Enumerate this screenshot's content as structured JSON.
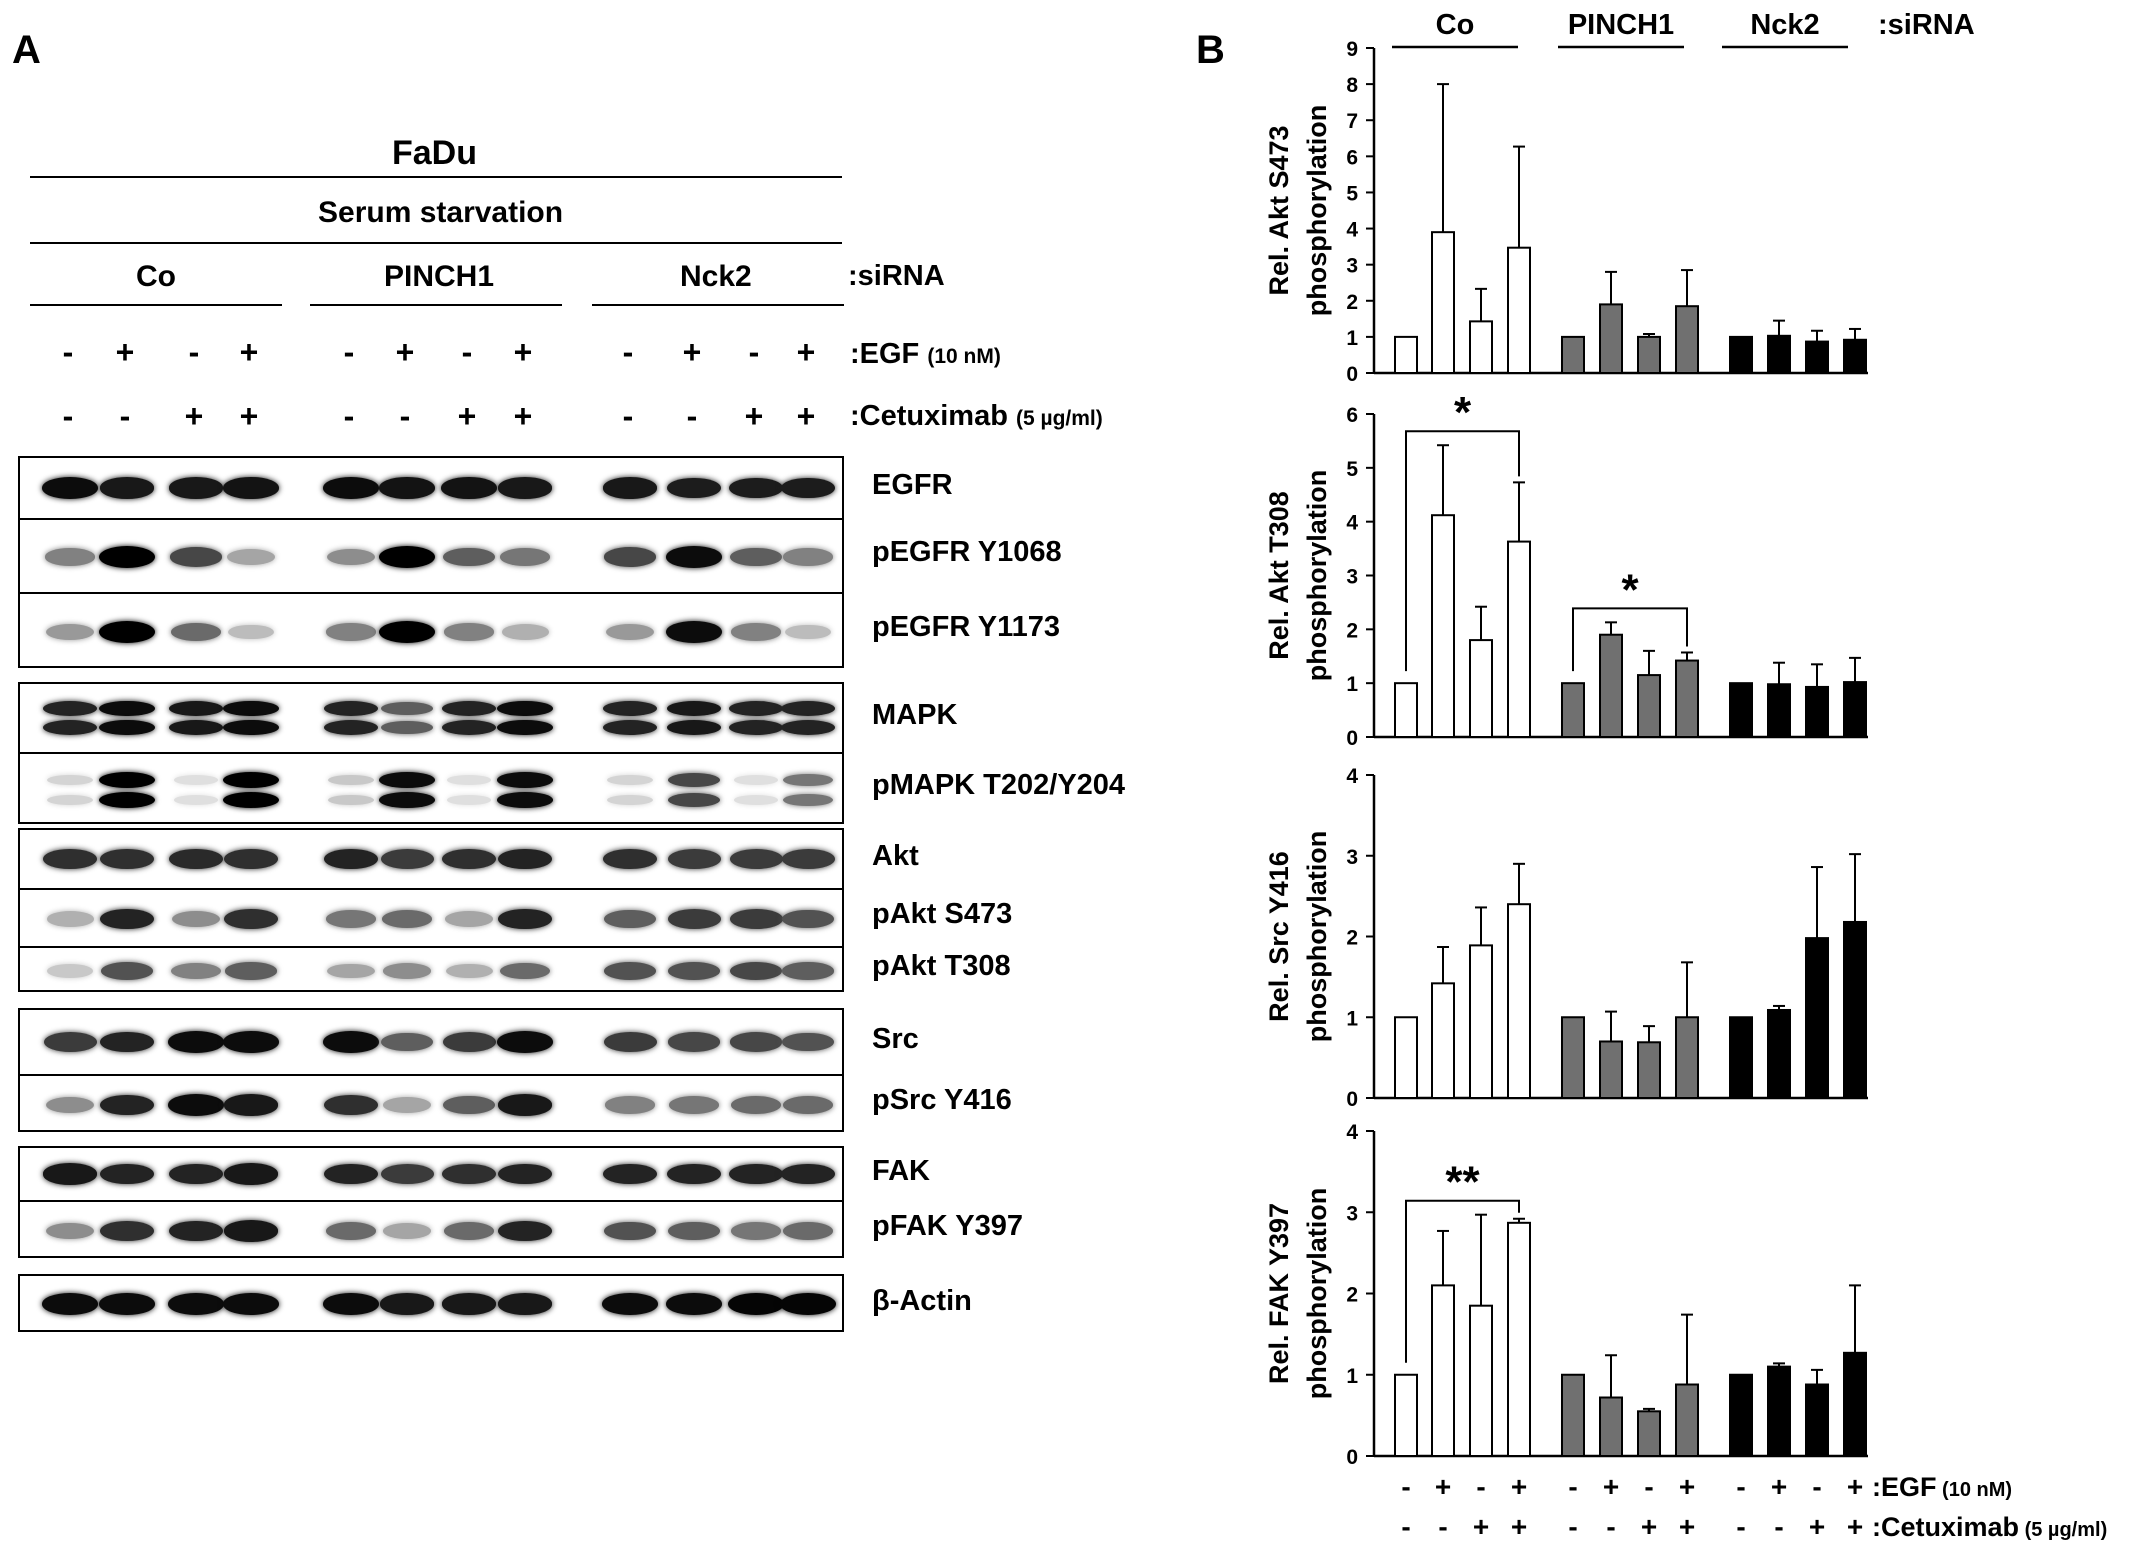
{
  "panel_a": {
    "letter": "A",
    "cell_line": "FaDu",
    "condition": "Serum starvation",
    "sirna_groups": [
      "Co",
      "PINCH1",
      "Nck2"
    ],
    "sirna_suffix": ":siRNA",
    "egf_signs": [
      "-",
      "+",
      "-",
      "+",
      "-",
      "+",
      "-",
      "+",
      "-",
      "+",
      "-",
      "+"
    ],
    "egf_label": ":EGF",
    "egf_dose": "(10 nM)",
    "cetuximab_signs": [
      "-",
      "-",
      "+",
      "+",
      "-",
      "-",
      "+",
      "+",
      "-",
      "-",
      "+",
      "+"
    ],
    "cetuximab_label": ":Cetuximab",
    "cetuximab_dose": "(5 µg/ml)",
    "blot_labels": [
      "EGFR",
      "pEGFR Y1068",
      "pEGFR Y1173",
      "MAPK",
      "pMAPK T202/Y204",
      "Akt",
      "pAkt S473",
      "pAkt T308",
      "Src",
      "pSrc Y416",
      "FAK",
      "pFAK Y397",
      "β-Actin"
    ],
    "band_intensity": {
      "EGFR": [
        0.95,
        0.9,
        0.9,
        0.92,
        0.95,
        0.92,
        0.92,
        0.9,
        0.9,
        0.88,
        0.88,
        0.88
      ],
      "pEGFR Y1068": [
        0.45,
        1.0,
        0.7,
        0.3,
        0.4,
        1.0,
        0.6,
        0.5,
        0.7,
        0.95,
        0.6,
        0.45
      ],
      "pEGFR Y1173": [
        0.35,
        1.0,
        0.55,
        0.2,
        0.45,
        1.0,
        0.45,
        0.25,
        0.35,
        0.95,
        0.45,
        0.2
      ],
      "MAPK": [
        0.85,
        0.95,
        0.9,
        0.95,
        0.85,
        0.6,
        0.85,
        0.95,
        0.85,
        0.9,
        0.85,
        0.85
      ],
      "pMAPK T202/Y204": [
        0.1,
        1.0,
        0.05,
        1.0,
        0.15,
        0.95,
        0.05,
        0.95,
        0.1,
        0.7,
        0.05,
        0.5
      ],
      "Akt": [
        0.8,
        0.8,
        0.82,
        0.8,
        0.85,
        0.75,
        0.8,
        0.85,
        0.8,
        0.75,
        0.75,
        0.75
      ],
      "pAkt S473": [
        0.25,
        0.85,
        0.4,
        0.8,
        0.5,
        0.55,
        0.3,
        0.85,
        0.6,
        0.75,
        0.75,
        0.65
      ],
      "pAkt T308": [
        0.15,
        0.65,
        0.45,
        0.6,
        0.3,
        0.4,
        0.25,
        0.55,
        0.65,
        0.65,
        0.7,
        0.6
      ],
      "Src": [
        0.75,
        0.85,
        0.95,
        0.95,
        0.95,
        0.6,
        0.75,
        0.95,
        0.75,
        0.7,
        0.7,
        0.65
      ],
      "pSrc Y416": [
        0.4,
        0.85,
        0.95,
        0.9,
        0.8,
        0.3,
        0.6,
        0.9,
        0.45,
        0.5,
        0.55,
        0.55
      ],
      "FAK": [
        0.9,
        0.85,
        0.85,
        0.9,
        0.85,
        0.75,
        0.8,
        0.85,
        0.85,
        0.85,
        0.85,
        0.85
      ],
      "pFAK Y397": [
        0.4,
        0.8,
        0.85,
        0.9,
        0.55,
        0.3,
        0.55,
        0.85,
        0.65,
        0.6,
        0.5,
        0.55
      ],
      "β-Actin": [
        0.95,
        0.95,
        0.95,
        0.95,
        0.95,
        0.9,
        0.9,
        0.9,
        0.95,
        0.95,
        0.98,
        0.98
      ]
    }
  },
  "panel_b": {
    "letter": "B",
    "sirna_groups": [
      "Co",
      "PINCH1",
      "Nck2"
    ],
    "sirna_suffix": ":siRNA",
    "egf_signs": [
      "-",
      "+",
      "-",
      "+",
      "-",
      "+",
      "-",
      "+",
      "-",
      "+",
      "-",
      "+"
    ],
    "egf_label": ":EGF",
    "egf_dose": "(10 nM)",
    "cetuximab_signs": [
      "-",
      "-",
      "+",
      "+",
      "-",
      "-",
      "+",
      "+",
      "-",
      "-",
      "+",
      "+"
    ],
    "cetuximab_label": ":Cetuximab",
    "cetuximab_dose": "(5 µg/ml)"
  },
  "colors": {
    "Co": "#ffffff",
    "PINCH1": "#707070",
    "Nck2": "#000000"
  },
  "chart_data": [
    {
      "type": "bar",
      "ylabel": [
        "Rel. Akt S473",
        "phosphorylation"
      ],
      "ylim": [
        0,
        9
      ],
      "yticks": [
        0,
        1,
        2,
        3,
        4,
        5,
        6,
        7,
        8,
        9
      ],
      "series": [
        {
          "name": "Co",
          "values": [
            1.0,
            3.9,
            1.43,
            3.47
          ],
          "errors": [
            0,
            4.1,
            0.9,
            2.8
          ]
        },
        {
          "name": "PINCH1",
          "values": [
            1.0,
            1.9,
            1.0,
            1.85
          ],
          "errors": [
            0,
            0.9,
            0.08,
            1.0
          ]
        },
        {
          "name": "Nck2",
          "values": [
            1.0,
            1.03,
            0.87,
            0.92
          ],
          "errors": [
            0,
            0.42,
            0.3,
            0.3
          ]
        }
      ],
      "significance": []
    },
    {
      "type": "bar",
      "ylabel": [
        "Rel. Akt T308",
        "phosphorylation"
      ],
      "ylim": [
        0,
        6
      ],
      "yticks": [
        0,
        1,
        2,
        3,
        4,
        5,
        6
      ],
      "series": [
        {
          "name": "Co",
          "values": [
            1.0,
            4.12,
            1.8,
            3.63
          ],
          "errors": [
            0,
            1.3,
            0.62,
            1.1
          ]
        },
        {
          "name": "PINCH1",
          "values": [
            1.0,
            1.9,
            1.15,
            1.42
          ],
          "errors": [
            0,
            0.23,
            0.45,
            0.15
          ]
        },
        {
          "name": "Nck2",
          "values": [
            1.0,
            0.98,
            0.93,
            1.02
          ],
          "errors": [
            0,
            0.4,
            0.42,
            0.45
          ]
        }
      ],
      "significance": [
        {
          "label": "*",
          "group": 0,
          "from": 0,
          "to": 3
        },
        {
          "label": "*",
          "group": 1,
          "from": 0,
          "to": 3
        }
      ]
    },
    {
      "type": "bar",
      "ylabel": [
        "Rel. Src Y416",
        "phosphorylation"
      ],
      "ylim": [
        0,
        4
      ],
      "yticks": [
        0,
        1,
        2,
        3,
        4
      ],
      "series": [
        {
          "name": "Co",
          "values": [
            1.0,
            1.42,
            1.89,
            2.4
          ],
          "errors": [
            0,
            0.45,
            0.47,
            0.5
          ]
        },
        {
          "name": "PINCH1",
          "values": [
            1.0,
            0.7,
            0.69,
            1.0
          ],
          "errors": [
            0,
            0.37,
            0.2,
            0.68
          ]
        },
        {
          "name": "Nck2",
          "values": [
            1.0,
            1.09,
            1.98,
            2.18
          ],
          "errors": [
            0,
            0.05,
            0.88,
            0.84
          ]
        }
      ],
      "significance": []
    },
    {
      "type": "bar",
      "ylabel": [
        "Rel. FAK Y397",
        "phosphorylation"
      ],
      "ylim": [
        0,
        4
      ],
      "yticks": [
        0,
        1,
        2,
        3,
        4
      ],
      "series": [
        {
          "name": "Co",
          "values": [
            1.0,
            2.1,
            1.85,
            2.87
          ],
          "errors": [
            0,
            0.67,
            1.12,
            0.05
          ]
        },
        {
          "name": "PINCH1",
          "values": [
            1.0,
            0.72,
            0.55,
            0.88
          ],
          "errors": [
            0,
            0.52,
            0.03,
            0.86
          ]
        },
        {
          "name": "Nck2",
          "values": [
            1.0,
            1.1,
            0.88,
            1.27
          ],
          "errors": [
            0,
            0.04,
            0.18,
            0.83
          ]
        }
      ],
      "significance": [
        {
          "label": "**",
          "group": 0,
          "from": 0,
          "to": 3
        }
      ]
    }
  ]
}
